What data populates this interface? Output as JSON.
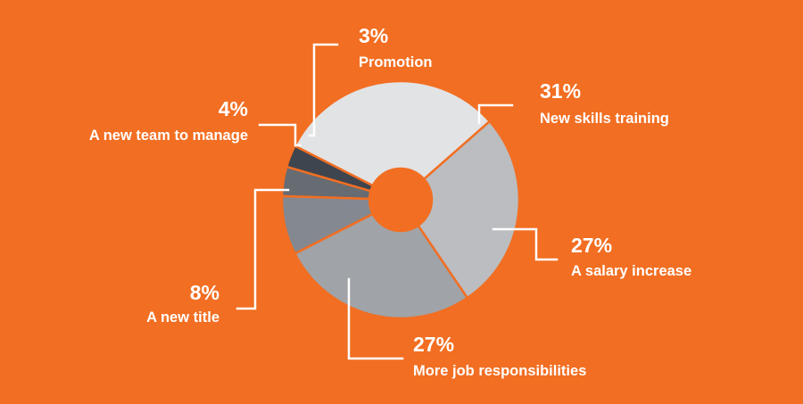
{
  "chart_data": {
    "type": "pie",
    "donut": true,
    "slices": [
      {
        "label": "New skills training",
        "value": 31,
        "value_label": "31%",
        "color": "#E2E3E4"
      },
      {
        "label": "A salary increase",
        "value": 27,
        "value_label": "27%",
        "color": "#BBBDC0"
      },
      {
        "label": "More job responsibilities",
        "value": 27,
        "value_label": "27%",
        "color": "#A0A3A7"
      },
      {
        "label": "A new title",
        "value": 8,
        "value_label": "8%",
        "color": "#848890"
      },
      {
        "label": "A new team to manage",
        "value": 4,
        "value_label": "4%",
        "color": "#676B72"
      },
      {
        "label": "Promotion",
        "value": 3,
        "value_label": "3%",
        "color": "#3F454E"
      }
    ],
    "background": "#F26E22",
    "separator_color": "#F26E22"
  }
}
